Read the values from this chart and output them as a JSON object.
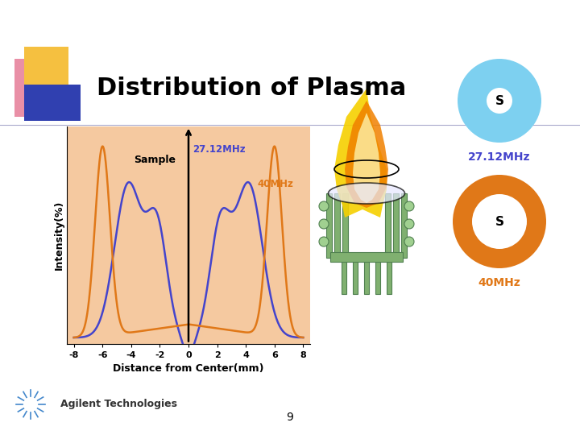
{
  "title": "Distribution of Plasma",
  "title_fontsize": 22,
  "title_fontweight": "bold",
  "bg_color": "#ffffff",
  "plot_bg_color": "#f5c9a0",
  "xlabel": "Distance from Center(mm)",
  "ylabel": "Intensity(%)",
  "xlim": [
    -8.5,
    8.5
  ],
  "xticks": [
    -8,
    -6,
    -4,
    -2,
    0,
    2,
    4,
    6,
    8
  ],
  "color_27MHz": "#4444cc",
  "color_40MHz": "#e07818",
  "label_27MHz": "27.12MHz",
  "label_40MHz": "40MHz",
  "label_sample": "Sample",
  "circle1_color": "#7dd0f0",
  "circle2_color": "#e07818",
  "label_27MHz_right": "27.12MHz",
  "label_40MHz_right": "40MHz",
  "page_number": "9",
  "deco_yellow": "#f5c040",
  "deco_blue": "#3040b0",
  "deco_pink": "#e06080"
}
